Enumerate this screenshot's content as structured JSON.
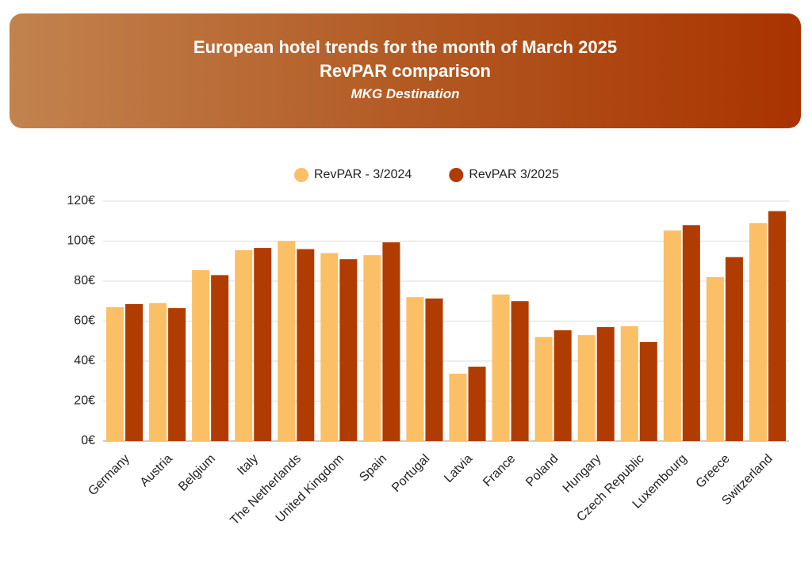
{
  "chart_data": {
    "type": "bar",
    "title": "European hotel trends for the month of March 2025",
    "subtitle": "RevPAR comparison",
    "caption": "MKG Destination",
    "categories": [
      "Germany",
      "Austria",
      "Belgium",
      "Italy",
      "The Netherlands",
      "United Kingdom",
      "Spain",
      "Portugal",
      "Latvia",
      "France",
      "Poland",
      "Hungary",
      "Czech Republic",
      "Luxembourg",
      "Greece",
      "Switzerland"
    ],
    "series": [
      {
        "name": "RevPAR - 3/2024",
        "color": "#fbbf66",
        "values": [
          67,
          69,
          85.5,
          95.5,
          100,
          94,
          93,
          72,
          33.7,
          73.3,
          52,
          53,
          57.4,
          105.3,
          82,
          109
        ]
      },
      {
        "name": "RevPAR 3/2025",
        "color": "#b13c02",
        "values": [
          68.5,
          66.5,
          83,
          96.6,
          96,
          91,
          99.4,
          71.3,
          37.2,
          70,
          55.4,
          57,
          49.5,
          108,
          92,
          115
        ]
      }
    ],
    "ylim": [
      0,
      120
    ],
    "yticks": [
      {
        "value": 0,
        "label": "0€"
      },
      {
        "value": 20,
        "label": "20€"
      },
      {
        "value": 40,
        "label": "40€"
      },
      {
        "value": 60,
        "label": "60€"
      },
      {
        "value": 80,
        "label": "80€"
      },
      {
        "value": 100,
        "label": "100€"
      },
      {
        "value": 120,
        "label": "120€"
      }
    ],
    "grid": true,
    "legend": "top"
  }
}
